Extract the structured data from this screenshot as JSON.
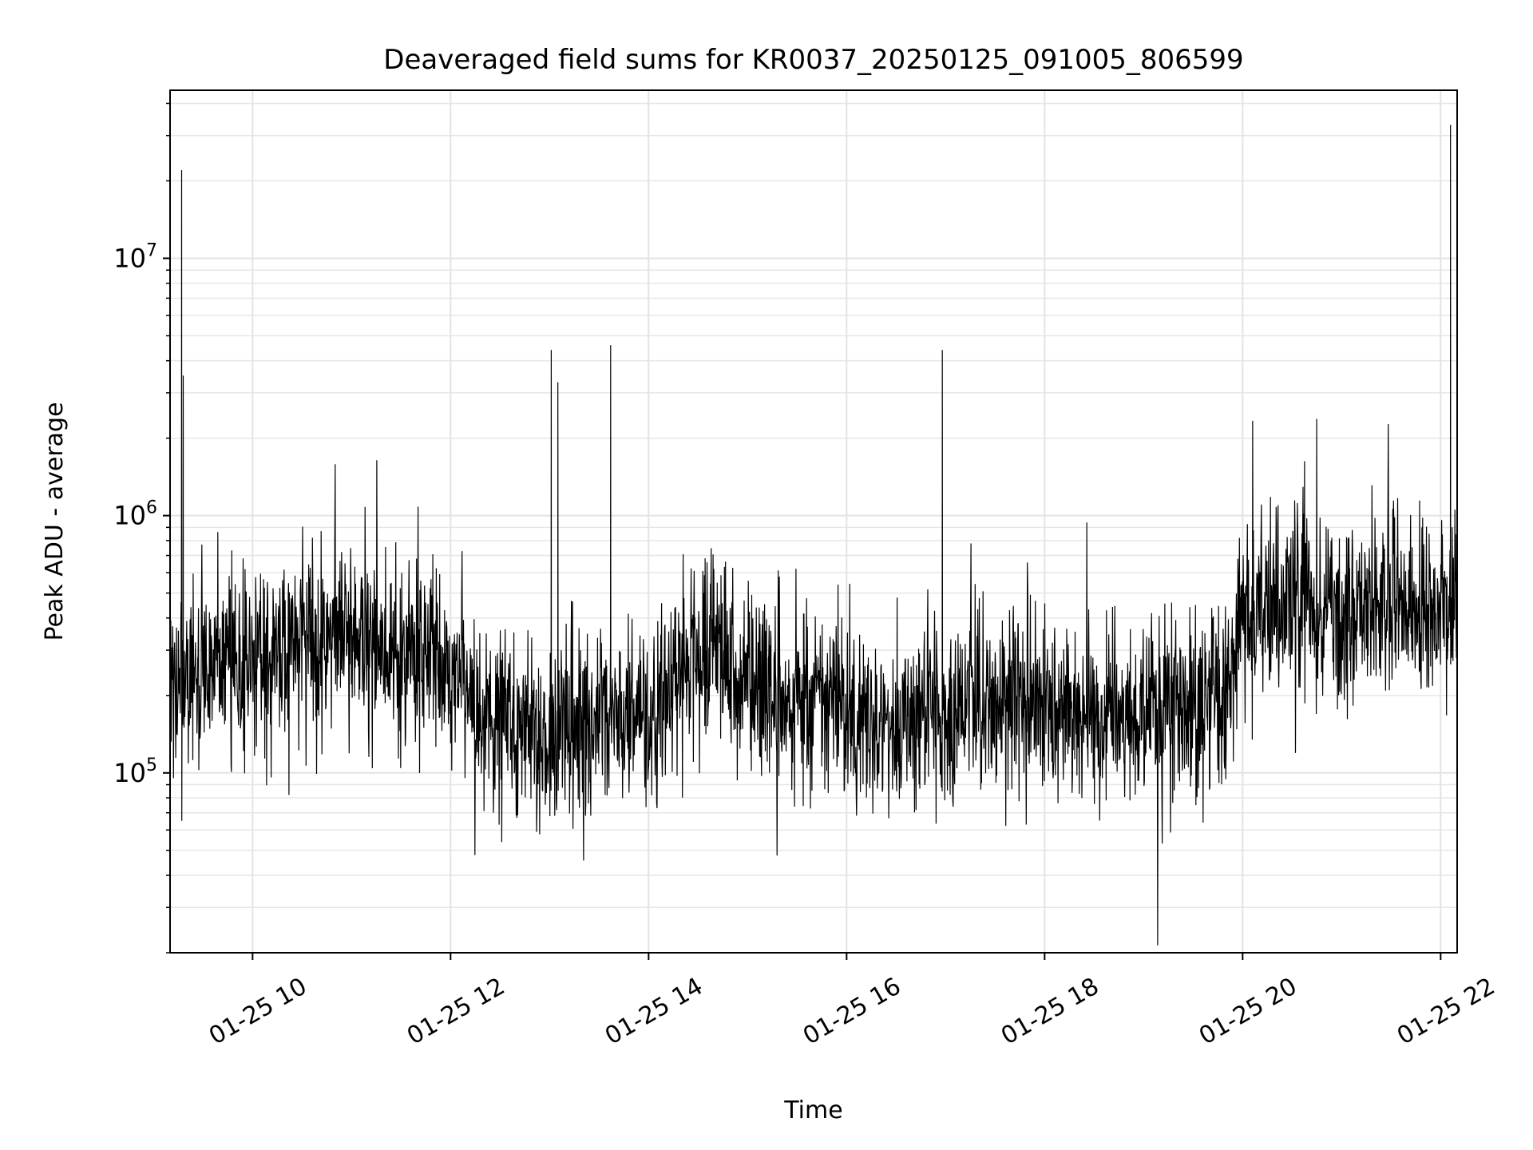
{
  "chart_data": {
    "type": "line",
    "title": "Deaveraged field sums for KR0037_20250125_091005_806599",
    "xlabel": "Time",
    "ylabel": "Peak ADU - average",
    "yscale": "log",
    "grid": true,
    "line_color": "#000000",
    "xlim": [
      "2025-01-25 09:10",
      "2025-01-25 22:10"
    ],
    "ylim": [
      20000,
      45000000
    ],
    "xticks": [
      {
        "value": "2025-01-25 10:00",
        "label": "01-25 10"
      },
      {
        "value": "2025-01-25 12:00",
        "label": "01-25 12"
      },
      {
        "value": "2025-01-25 14:00",
        "label": "01-25 14"
      },
      {
        "value": "2025-01-25 16:00",
        "label": "01-25 16"
      },
      {
        "value": "2025-01-25 18:00",
        "label": "01-25 18"
      },
      {
        "value": "2025-01-25 20:00",
        "label": "01-25 20"
      },
      {
        "value": "2025-01-25 22:00",
        "label": "01-25 22"
      }
    ],
    "yticks": [
      {
        "value": 100000,
        "base": "10",
        "exp": "5"
      },
      {
        "value": 1000000,
        "base": "10",
        "exp": "6"
      },
      {
        "value": 10000000,
        "base": "10",
        "exp": "7"
      }
    ],
    "series": [
      {
        "x": [
          "2025-01-25 09:10",
          "2025-01-25 09:20",
          "2025-01-25 09:30",
          "2025-01-25 09:40",
          "2025-01-25 10:00",
          "2025-01-25 10:20",
          "2025-01-25 10:40",
          "2025-01-25 11:00",
          "2025-01-25 11:20",
          "2025-01-25 11:40",
          "2025-01-25 12:00",
          "2025-01-25 12:20",
          "2025-01-25 12:40",
          "2025-01-25 13:00",
          "2025-01-25 13:20",
          "2025-01-25 13:40",
          "2025-01-25 14:00",
          "2025-01-25 14:20",
          "2025-01-25 14:40",
          "2025-01-25 15:00",
          "2025-01-25 15:20",
          "2025-01-25 15:40",
          "2025-01-25 16:00",
          "2025-01-25 16:20",
          "2025-01-25 16:40",
          "2025-01-25 17:00",
          "2025-01-25 17:20",
          "2025-01-25 17:40",
          "2025-01-25 18:00",
          "2025-01-25 18:20",
          "2025-01-25 18:40",
          "2025-01-25 19:00",
          "2025-01-25 19:20",
          "2025-01-25 19:40",
          "2025-01-25 19:50",
          "2025-01-25 20:00",
          "2025-01-25 20:20",
          "2025-01-25 20:40",
          "2025-01-25 21:00",
          "2025-01-25 21:20",
          "2025-01-25 21:40",
          "2025-01-25 22:00",
          "2025-01-25 22:10"
        ],
        "y": [
          220000,
          240000,
          230000,
          250000,
          270000,
          300000,
          330000,
          340000,
          320000,
          290000,
          260000,
          180000,
          150000,
          140000,
          150000,
          170000,
          160000,
          280000,
          300000,
          240000,
          190000,
          200000,
          170000,
          150000,
          160000,
          170000,
          190000,
          180000,
          190000,
          170000,
          160000,
          170000,
          180000,
          190000,
          200000,
          420000,
          440000,
          450000,
          420000,
          440000,
          480000,
          420000,
          500000
        ]
      }
    ],
    "spikes": [
      {
        "x": "2025-01-25 09:17",
        "y": 22000000
      },
      {
        "x": "2025-01-25 09:18",
        "y": 3500000
      },
      {
        "x": "2025-01-25 13:01",
        "y": 4400000
      },
      {
        "x": "2025-01-25 13:05",
        "y": 3300000
      },
      {
        "x": "2025-01-25 13:37",
        "y": 4600000
      },
      {
        "x": "2025-01-25 16:58",
        "y": 4400000
      },
      {
        "x": "2025-01-25 22:06",
        "y": 33000000
      }
    ]
  }
}
